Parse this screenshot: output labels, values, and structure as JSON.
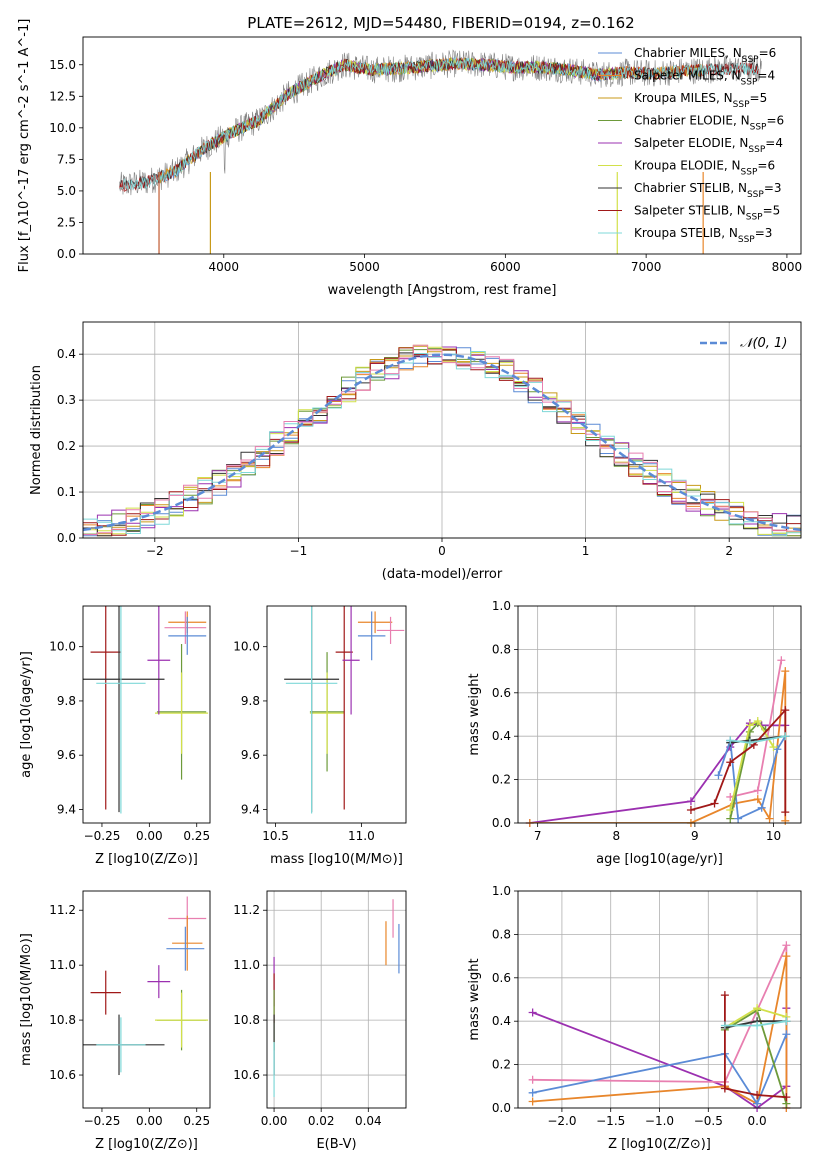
{
  "figure": {
    "title": "PLATE=2612, MJD=54480, FIBERID=0194, z=0.162"
  },
  "chart_data": [
    {
      "type": "line",
      "panel": "spectrum",
      "ylabel": "Flux [f_λ10^-17 erg cm^-2 s^-1 A^-1]",
      "xlabel": "wavelength [Angstrom, rest frame]",
      "xlim": [
        3000,
        8100
      ],
      "ylim": [
        0,
        17.2
      ],
      "xticks": [
        4000,
        5000,
        6000,
        7000,
        8000
      ],
      "yticks": [
        0.0,
        2.5,
        5.0,
        7.5,
        10.0,
        12.5,
        15.0
      ],
      "legend_position": "right",
      "observed_spectrum": {
        "color": "#808080",
        "x": [
          3260,
          3450,
          3650,
          3850,
          4050,
          4250,
          4450,
          4650,
          4850,
          5050,
          5250,
          5450,
          5650,
          5850,
          6050,
          6250,
          6450,
          6650,
          6850,
          7050,
          7250,
          7450,
          7650,
          7820
        ],
        "y": [
          5.4,
          5.7,
          6.5,
          8.3,
          9.6,
          10.6,
          12.6,
          13.9,
          15.0,
          14.6,
          14.7,
          14.9,
          15.1,
          15.0,
          14.8,
          14.8,
          14.6,
          14.2,
          14.4,
          14.3,
          14.5,
          14.6,
          14.7,
          14.6
        ]
      },
      "series": [
        {
          "name": "Chabrier MILES, N_SSP=6",
          "color": "#5b8bd6",
          "x_range": [
            3540,
            7400
          ]
        },
        {
          "name": "Salpeter MILES, N_SSP=4",
          "color": "#e8862b",
          "x_range": [
            3540,
            7400
          ]
        },
        {
          "name": "Kroupa MILES, N_SSP=5",
          "color": "#c89a1a",
          "x_range": [
            3540,
            7400
          ]
        },
        {
          "name": "Chabrier ELODIE, N_SSP=6",
          "color": "#6d9a3a",
          "x_range": [
            3900,
            6800
          ]
        },
        {
          "name": "Salpeter ELODIE, N_SSP=4",
          "color": "#9b30b0",
          "x_range": [
            3900,
            6800
          ]
        },
        {
          "name": "Kroupa ELODIE, N_SSP=6",
          "color": "#d2e04a",
          "x_range": [
            3900,
            6800
          ]
        },
        {
          "name": "Chabrier STELIB, N_SSP=3",
          "color": "#333333",
          "x_range": [
            3260,
            7800
          ]
        },
        {
          "name": "Salpeter STELIB, N_SSP=5",
          "color": "#a01818",
          "x_range": [
            3260,
            7800
          ]
        },
        {
          "name": "Kroupa STELIB, N_SSP=3",
          "color": "#7fd8d8",
          "x_range": [
            3260,
            7800
          ]
        }
      ],
      "legend_entries": [
        {
          "model": "Chabrier MILES, N",
          "sub": "SSP",
          "n": "=6"
        },
        {
          "model": "Salpeter MILES, N",
          "sub": "SSP",
          "n": "=4"
        },
        {
          "model": "Kroupa MILES, N",
          "sub": "SSP",
          "n": "=5"
        },
        {
          "model": "Chabrier ELODIE, N",
          "sub": "SSP",
          "n": "=6"
        },
        {
          "model": "Salpeter ELODIE, N",
          "sub": "SSP",
          "n": "=4"
        },
        {
          "model": "Kroupa ELODIE, N",
          "sub": "SSP",
          "n": "=6"
        },
        {
          "model": "Chabrier STELIB, N",
          "sub": "SSP",
          "n": "=3"
        },
        {
          "model": "Salpeter STELIB, N",
          "sub": "SSP",
          "n": "=5"
        },
        {
          "model": "Kroupa STELIB, N",
          "sub": "SSP",
          "n": "=3"
        }
      ]
    },
    {
      "type": "line",
      "panel": "residuals",
      "xlabel": "(data-model)/error",
      "ylabel": "Normed distribution",
      "xlim": [
        -2.5,
        2.5
      ],
      "ylim": [
        0,
        0.47
      ],
      "xticks": [
        -2,
        -1,
        0,
        1,
        2
      ],
      "yticks": [
        0.0,
        0.1,
        0.2,
        0.3,
        0.4
      ],
      "grid": true,
      "legend_position": "top-right",
      "gaussian": {
        "name": "N(0,1)",
        "color": "#5b8bd6",
        "mean": 0,
        "sigma": 1
      },
      "bin_width": 0.1,
      "histograms": "step histograms of normalized residuals for each of the nine fits, approximating N(0,1) with ~0.03 scatter",
      "series_colors": [
        "#5b8bd6",
        "#e8862b",
        "#c89a1a",
        "#6d9a3a",
        "#9b30b0",
        "#d2e04a",
        "#333333",
        "#a01818",
        "#7fd8d8",
        "#e87fb0"
      ]
    },
    {
      "type": "scatter",
      "panel": "age-vs-Z",
      "xlabel": "Z [log10(Z/Z⊙)]",
      "ylabel": "age [log10(age/yr)]",
      "xlim": [
        -0.35,
        0.32
      ],
      "ylim": [
        9.35,
        10.15
      ],
      "xticks": [
        -0.25,
        0.0,
        0.25
      ],
      "yticks": [
        9.4,
        9.6,
        9.8,
        10.0
      ],
      "points": [
        {
          "color": "#e8862b",
          "x": 0.2,
          "xerr": 0.1,
          "y": 10.09,
          "yerr": 0.04
        },
        {
          "color": "#e87fb0",
          "x": 0.19,
          "xerr": 0.11,
          "y": 10.07,
          "yerr": 0.06
        },
        {
          "color": "#5b8bd6",
          "x": 0.2,
          "xerr": 0.1,
          "y": 10.04,
          "yerr": 0.07
        },
        {
          "color": "#6d9a3a",
          "x": 0.17,
          "xerr": 0.13,
          "y": 9.76,
          "yerr": 0.25
        },
        {
          "color": "#d2e04a",
          "x": 0.17,
          "xerr": 0.14,
          "y": 9.755,
          "yerr": 0.15
        },
        {
          "color": "#a01818",
          "x": -0.23,
          "xerr": 0.08,
          "y": 9.98,
          "yerr": 0.58
        },
        {
          "color": "#9b30b0",
          "x": 0.05,
          "xerr": 0.06,
          "y": 9.95,
          "yerr": 0.2
        },
        {
          "color": "#333333",
          "x": -0.16,
          "xerr": 0.24,
          "y": 9.88,
          "yerr": 0.49
        },
        {
          "color": "#7fd8d8",
          "x": -0.15,
          "xerr": 0.13,
          "y": 9.865,
          "yerr": 0.48
        }
      ]
    },
    {
      "type": "scatter",
      "panel": "age-vs-mass",
      "xlabel": "mass [log10(M/M⊙)]",
      "ylabel": "",
      "xlim": [
        10.45,
        11.26
      ],
      "ylim": [
        9.35,
        10.15
      ],
      "xticks": [
        10.5,
        11.0
      ],
      "yticks": [
        9.4,
        9.6,
        9.8,
        10.0
      ],
      "points": [
        {
          "color": "#e8862b",
          "x": 11.08,
          "xerr": 0.1,
          "y": 10.09,
          "yerr": 0.04
        },
        {
          "color": "#e87fb0",
          "x": 11.17,
          "xerr": 0.08,
          "y": 10.06,
          "yerr": 0.05
        },
        {
          "color": "#5b8bd6",
          "x": 11.06,
          "xerr": 0.08,
          "y": 10.04,
          "yerr": 0.09
        },
        {
          "color": "#6d9a3a",
          "x": 10.8,
          "xerr": 0.1,
          "y": 9.76,
          "yerr": 0.22
        },
        {
          "color": "#d2e04a",
          "x": 10.8,
          "xerr": 0.1,
          "y": 9.755,
          "yerr": 0.15
        },
        {
          "color": "#a01818",
          "x": 10.9,
          "xerr": 0.05,
          "y": 9.98,
          "yerr": 0.58
        },
        {
          "color": "#9b30b0",
          "x": 10.94,
          "xerr": 0.05,
          "y": 9.95,
          "yerr": 0.2
        },
        {
          "color": "#333333",
          "x": 10.71,
          "xerr": 0.16,
          "y": 9.88,
          "yerr": 0.49
        },
        {
          "color": "#7fd8d8",
          "x": 10.71,
          "xerr": 0.15,
          "y": 9.865,
          "yerr": 0.48
        }
      ]
    },
    {
      "type": "line",
      "panel": "mass-weight-vs-age",
      "xlabel": "age [log10(age/yr)]",
      "ylabel": "mass weight",
      "xlim": [
        6.75,
        10.35
      ],
      "ylim": [
        0,
        1.0
      ],
      "xticks": [
        7,
        8,
        9,
        10
      ],
      "yticks": [
        0.0,
        0.2,
        0.4,
        0.6,
        0.8,
        1.0
      ],
      "grid": true,
      "series": [
        {
          "color": "#9b30b0",
          "x": [
            6.9,
            8.95,
            9.45,
            9.7,
            9.85,
            10.15
          ],
          "y": [
            0.0,
            0.1,
            0.35,
            0.46,
            0.45,
            0.45
          ]
        },
        {
          "color": "#e87fb0",
          "x": [
            9.45,
            9.8,
            10.1
          ],
          "y": [
            0.12,
            0.15,
            0.75
          ]
        },
        {
          "color": "#e8862b",
          "x": [
            6.9,
            8.95,
            9.5,
            9.8,
            9.95,
            10.15,
            10.15
          ],
          "y": [
            0.0,
            0.0,
            0.09,
            0.11,
            0.02,
            0.7,
            0.01
          ]
        },
        {
          "color": "#5b8bd6",
          "x": [
            9.3,
            9.45,
            9.55,
            9.85,
            10.05,
            10.15
          ],
          "y": [
            0.22,
            0.38,
            0.02,
            0.07,
            0.34,
            0.4
          ]
        },
        {
          "color": "#6d9a3a",
          "x": [
            9.45,
            9.7,
            9.8,
            9.9
          ],
          "y": [
            0.02,
            0.42,
            0.46,
            0.43
          ]
        },
        {
          "color": "#d2e04a",
          "x": [
            9.45,
            9.7,
            9.8,
            10.0
          ],
          "y": [
            0.06,
            0.45,
            0.47,
            0.35
          ]
        },
        {
          "color": "#333333",
          "x": [
            9.45,
            9.7,
            10.15
          ],
          "y": [
            0.37,
            0.38,
            0.4
          ]
        },
        {
          "color": "#a01818",
          "x": [
            8.95,
            9.25,
            9.45,
            9.75,
            10.15,
            10.15
          ],
          "y": [
            0.06,
            0.09,
            0.28,
            0.36,
            0.52,
            0.05
          ]
        },
        {
          "color": "#7fd8d8",
          "x": [
            9.45,
            9.7,
            10.15
          ],
          "y": [
            0.38,
            0.37,
            0.4
          ]
        }
      ]
    },
    {
      "type": "scatter",
      "panel": "mass-vs-Z",
      "xlabel": "Z [log10(Z/Z⊙)]",
      "ylabel": "mass [log10(M/M⊙)]",
      "xlim": [
        -0.35,
        0.32
      ],
      "ylim": [
        10.48,
        11.27
      ],
      "xticks": [
        -0.25,
        0.0,
        0.25
      ],
      "yticks": [
        10.6,
        10.8,
        11.0,
        11.2
      ],
      "points": [
        {
          "color": "#e87fb0",
          "x": 0.2,
          "xerr": 0.1,
          "y": 11.17,
          "yerr": 0.08
        },
        {
          "color": "#e8862b",
          "x": 0.2,
          "xerr": 0.08,
          "y": 11.08,
          "yerr": 0.1
        },
        {
          "color": "#5b8bd6",
          "x": 0.19,
          "xerr": 0.1,
          "y": 11.06,
          "yerr": 0.08
        },
        {
          "color": "#9b30b0",
          "x": 0.05,
          "xerr": 0.06,
          "y": 10.94,
          "yerr": 0.06
        },
        {
          "color": "#a01818",
          "x": -0.23,
          "xerr": 0.08,
          "y": 10.9,
          "yerr": 0.08
        },
        {
          "color": "#6d9a3a",
          "x": 0.17,
          "xerr": 0.13,
          "y": 10.8,
          "yerr": 0.11
        },
        {
          "color": "#d2e04a",
          "x": 0.17,
          "xerr": 0.14,
          "y": 10.8,
          "yerr": 0.1
        },
        {
          "color": "#333333",
          "x": -0.16,
          "xerr": 0.24,
          "y": 10.71,
          "yerr": 0.11
        },
        {
          "color": "#7fd8d8",
          "x": -0.15,
          "xerr": 0.13,
          "y": 10.71,
          "yerr": 0.1
        }
      ]
    },
    {
      "type": "scatter",
      "panel": "mass-vs-EBV",
      "xlabel": "E(B-V)",
      "ylabel": "",
      "xlim": [
        -0.003,
        0.056
      ],
      "ylim": [
        10.48,
        11.27
      ],
      "xticks": [
        0.0,
        0.02,
        0.04
      ],
      "yticks": [
        10.6,
        10.8,
        11.0,
        11.2
      ],
      "points": [
        {
          "color": "#e87fb0",
          "x": 0.0505,
          "xerr": 0.0,
          "y": 11.17,
          "yerr": 0.07
        },
        {
          "color": "#e8862b",
          "x": 0.0475,
          "xerr": 0.0,
          "y": 11.08,
          "yerr": 0.08
        },
        {
          "color": "#5b8bd6",
          "x": 0.053,
          "xerr": 0.0,
          "y": 11.06,
          "yerr": 0.09
        },
        {
          "color": "#9b30b0",
          "x": 0.0,
          "xerr": 0.0,
          "y": 10.94,
          "yerr": 0.09
        },
        {
          "color": "#a01818",
          "x": 0.0,
          "xerr": 0.0,
          "y": 10.88,
          "yerr": 0.09
        },
        {
          "color": "#6d9a3a",
          "x": 0.0,
          "xerr": 0.0,
          "y": 10.8,
          "yerr": 0.11
        },
        {
          "color": "#333333",
          "x": 0.0,
          "xerr": 0.0,
          "y": 10.71,
          "yerr": 0.11
        },
        {
          "color": "#7fd8d8",
          "x": 0.0,
          "xerr": 0.0,
          "y": 10.62,
          "yerr": 0.1
        }
      ]
    },
    {
      "type": "line",
      "panel": "mass-weight-vs-Z",
      "xlabel": "Z [log10(Z/Z⊙)]",
      "ylabel": "mass weight",
      "xlim": [
        -2.45,
        0.45
      ],
      "ylim": [
        0,
        1.0
      ],
      "xticks": [
        -2.0,
        -1.5,
        -1.0,
        -0.5,
        0.0
      ],
      "yticks": [
        0.0,
        0.2,
        0.4,
        0.6,
        0.8,
        1.0
      ],
      "grid": true,
      "series": [
        {
          "color": "#9b30b0",
          "x": [
            -2.3,
            -0.33,
            0.0,
            0.3,
            0.3
          ],
          "y": [
            0.44,
            0.1,
            0.0,
            0.1,
            0.46
          ]
        },
        {
          "color": "#e87fb0",
          "x": [
            -2.3,
            -0.33,
            0.3,
            0.3
          ],
          "y": [
            0.13,
            0.12,
            0.75,
            0.0
          ]
        },
        {
          "color": "#e8862b",
          "x": [
            -2.3,
            -0.33,
            0.0,
            0.3,
            0.3
          ],
          "y": [
            0.03,
            0.1,
            0.02,
            0.7,
            0.0
          ]
        },
        {
          "color": "#5b8bd6",
          "x": [
            -2.3,
            -0.33,
            0.0,
            0.3
          ],
          "y": [
            0.07,
            0.25,
            0.02,
            0.34
          ]
        },
        {
          "color": "#6d9a3a",
          "x": [
            -0.33,
            0.0,
            0.3
          ],
          "y": [
            0.36,
            0.45,
            0.02
          ]
        },
        {
          "color": "#d2e04a",
          "x": [
            -0.33,
            0.0,
            0.3
          ],
          "y": [
            0.37,
            0.46,
            0.42
          ]
        },
        {
          "color": "#333333",
          "x": [
            -0.33,
            0.0,
            0.3
          ],
          "y": [
            0.37,
            0.4,
            0.4
          ]
        },
        {
          "color": "#a01818",
          "x": [
            -0.33,
            -0.33,
            0.0,
            0.3
          ],
          "y": [
            0.52,
            0.09,
            0.06,
            0.05
          ]
        },
        {
          "color": "#7fd8d8",
          "x": [
            -0.33,
            0.0,
            0.3
          ],
          "y": [
            0.38,
            0.38,
            0.4
          ]
        }
      ]
    }
  ]
}
